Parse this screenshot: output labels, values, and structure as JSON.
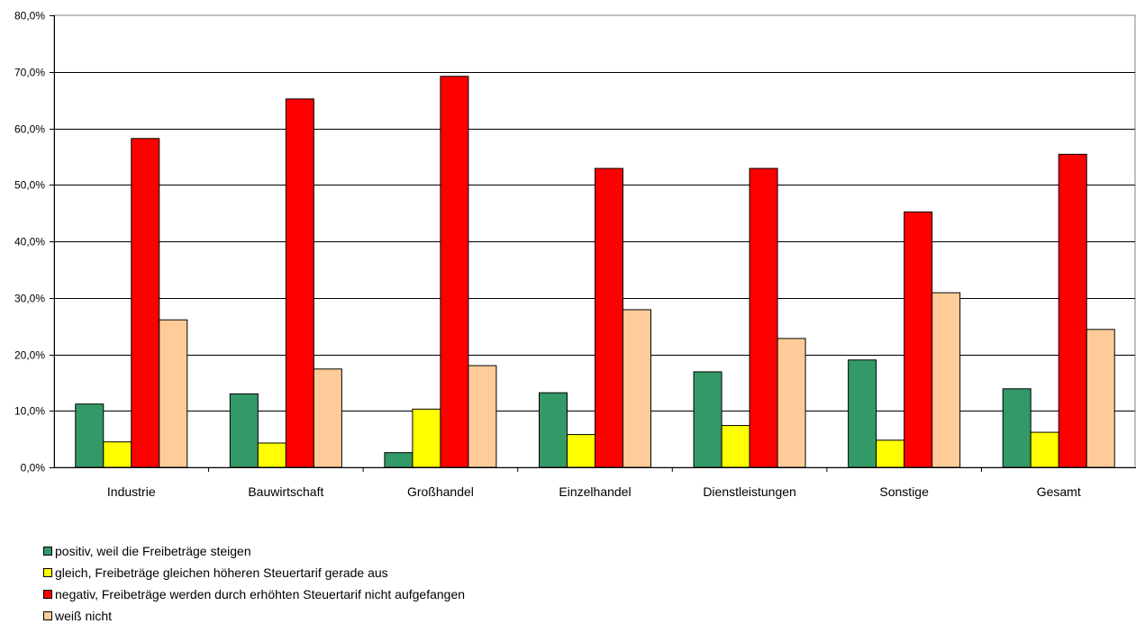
{
  "chart_data": {
    "type": "bar",
    "categories": [
      "Industrie",
      "Bauwirtschaft",
      "Großhandel",
      "Einzelhandel",
      "Dienstleistungen",
      "Sonstige",
      "Gesamt"
    ],
    "series": [
      {
        "name": "positiv, weil die Freibeträge steigen",
        "color": "#339966",
        "values": [
          11.2,
          13.0,
          2.6,
          13.2,
          16.9,
          19.0,
          13.9
        ]
      },
      {
        "name": "gleich, Freibeträge gleichen höheren Steuertarif gerade aus",
        "color": "#ffff00",
        "values": [
          4.5,
          4.3,
          10.3,
          5.8,
          7.4,
          4.8,
          6.2
        ]
      },
      {
        "name": "negativ, Freibeträge werden durch erhöhten Steuertarif nicht aufgefangen",
        "color": "#ff0000",
        "values": [
          58.2,
          65.2,
          69.2,
          52.9,
          52.9,
          45.2,
          55.4
        ]
      },
      {
        "name": "weiß nicht",
        "color": "#ffcc99",
        "values": [
          26.1,
          17.4,
          18.0,
          27.9,
          22.8,
          30.9,
          24.4
        ]
      }
    ],
    "yticks": [
      "0,0%",
      "10,0%",
      "20,0%",
      "30,0%",
      "40,0%",
      "50,0%",
      "60,0%",
      "70,0%",
      "80,0%"
    ],
    "ylim": [
      0,
      80
    ],
    "grid": true,
    "legend_position": "bottom-left"
  }
}
